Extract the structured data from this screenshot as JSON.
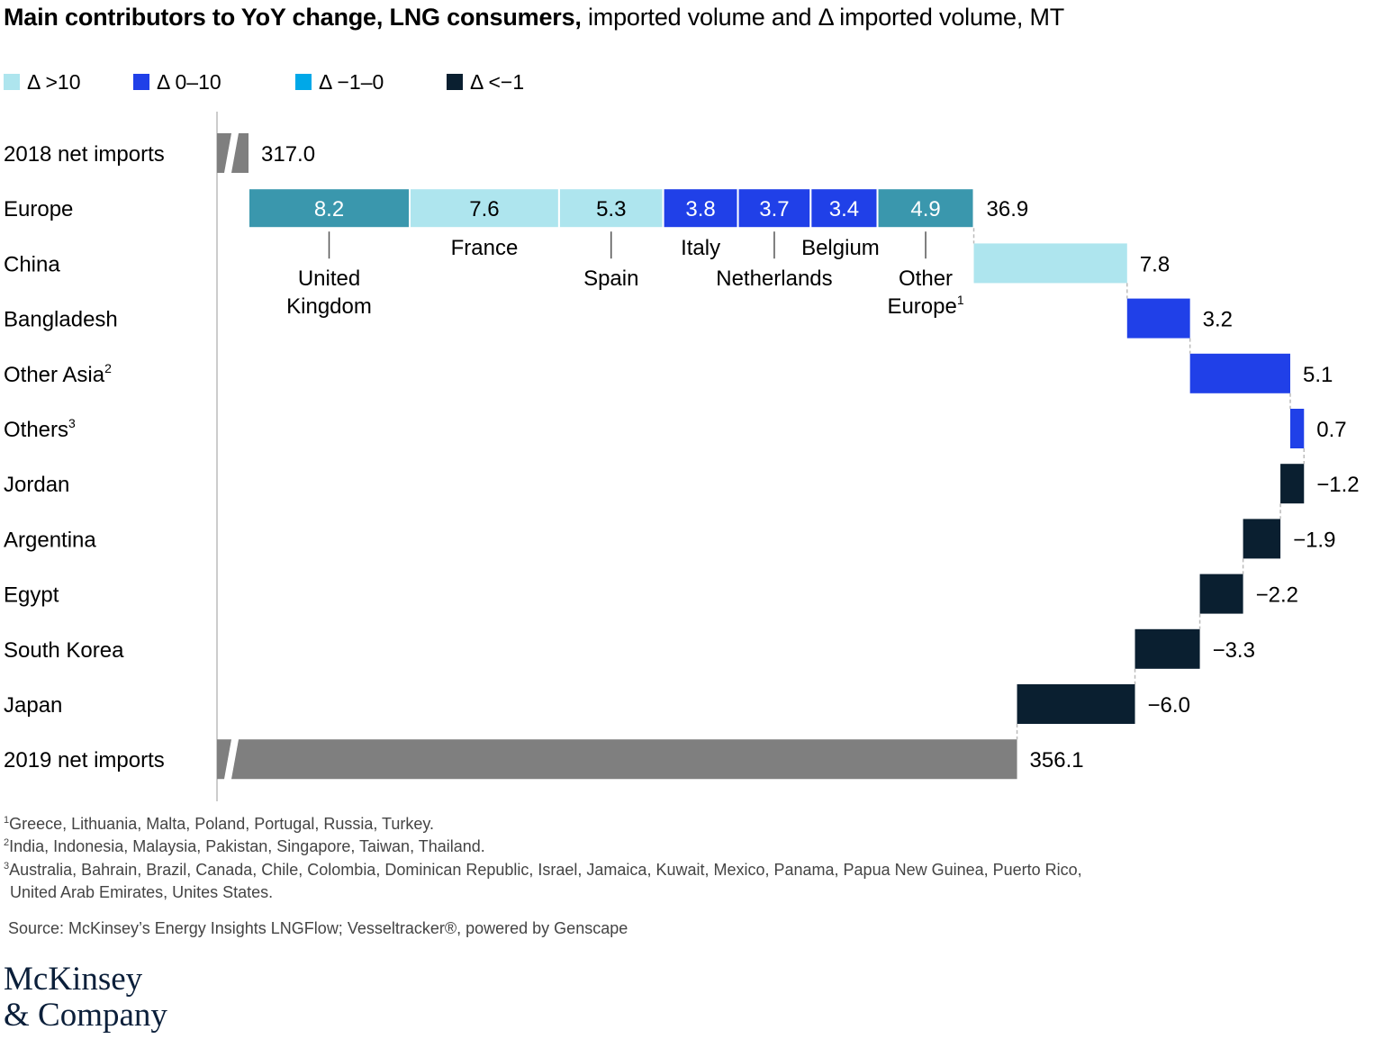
{
  "title": {
    "bold": "Main contributors to YoY change, LNG consumers,",
    "rest": " imported volume and Δ imported volume, MT"
  },
  "legend": [
    {
      "label": "Δ >10",
      "color": "#aee5ee"
    },
    {
      "label": "Δ 0–10",
      "color": "#2040e8"
    },
    {
      "label": "Δ −1–0",
      "color": "#00a8e8"
    },
    {
      "label": "Δ <−1",
      "color": "#0a1f30"
    }
  ],
  "colors": {
    "total": "#7f7f7f",
    "europe_group": "#3a97ad",
    "axis": "#cccccc"
  },
  "chart_data": {
    "type": "waterfall",
    "start": {
      "label": "2018 net imports",
      "value": 317.0,
      "value_label": "317.0"
    },
    "end": {
      "label": "2019 net imports",
      "value": 356.1,
      "value_label": "356.1"
    },
    "rows": [
      {
        "label": "Europe",
        "sup": "",
        "value": 36.9,
        "value_label": "36.9",
        "breakdown": true
      },
      {
        "label": "China",
        "sup": "",
        "value": 7.8,
        "value_label": "7.8",
        "category": "Δ >10"
      },
      {
        "label": "Bangladesh",
        "sup": "",
        "value": 3.2,
        "value_label": "3.2",
        "category": "Δ 0–10"
      },
      {
        "label": "Other Asia",
        "sup": "2",
        "value": 5.1,
        "value_label": "5.1",
        "category": "Δ 0–10"
      },
      {
        "label": "Others",
        "sup": "3",
        "value": 0.7,
        "value_label": "0.7",
        "category": "Δ 0–10"
      },
      {
        "label": "Jordan",
        "sup": "",
        "value": -1.2,
        "value_label": "−1.2",
        "category": "Δ <−1"
      },
      {
        "label": "Argentina",
        "sup": "",
        "value": -1.9,
        "value_label": "−1.9",
        "category": "Δ <−1"
      },
      {
        "label": "Egypt",
        "sup": "",
        "value": -2.2,
        "value_label": "−2.2",
        "category": "Δ <−1"
      },
      {
        "label": "South Korea",
        "sup": "",
        "value": -3.3,
        "value_label": "−3.3",
        "category": "Δ <−1"
      },
      {
        "label": "Japan",
        "sup": "",
        "value": -6.0,
        "value_label": "−6.0",
        "category": "Δ <−1"
      }
    ],
    "europe_breakdown": [
      {
        "name": "United Kingdom",
        "lines": [
          "United",
          "Kingdom"
        ],
        "sup": "",
        "value": 8.2,
        "value_label": "8.2",
        "category": "group"
      },
      {
        "name": "France",
        "lines": [
          "France"
        ],
        "sup": "",
        "value": 7.6,
        "value_label": "7.6",
        "category": "Δ >10"
      },
      {
        "name": "Spain",
        "lines": [
          "Spain"
        ],
        "sup": "",
        "value": 5.3,
        "value_label": "5.3",
        "category": "Δ >10"
      },
      {
        "name": "Italy",
        "lines": [
          "Italy"
        ],
        "sup": "",
        "value": 3.8,
        "value_label": "3.8",
        "category": "Δ 0–10"
      },
      {
        "name": "Netherlands",
        "lines": [
          "Netherlands"
        ],
        "sup": "",
        "value": 3.7,
        "value_label": "3.7",
        "category": "Δ 0–10"
      },
      {
        "name": "Belgium",
        "lines": [
          "Belgium"
        ],
        "sup": "",
        "value": 3.4,
        "value_label": "3.4",
        "category": "Δ 0–10"
      },
      {
        "name": "Other Europe",
        "lines": [
          "Other",
          "Europe"
        ],
        "sup": "1",
        "value": 4.9,
        "value_label": "4.9",
        "category": "group"
      }
    ]
  },
  "footnotes": [
    {
      "sup": "1",
      "text": "Greece, Lithuania, Malta, Poland, Portugal, Russia, Turkey."
    },
    {
      "sup": "2",
      "text": "India, Indonesia, Malaysia, Pakistan, Singapore, Taiwan, Thailand."
    },
    {
      "sup": "3",
      "text": "Australia, Bahrain, Brazil, Canada, Chile, Colombia, Dominican Republic, Israel, Jamaica, Kuwait, Mexico, Panama, Papua New Guinea, Puerto Rico,"
    },
    {
      "sup": "",
      "text": "United Arab Emirates, Unites States."
    }
  ],
  "source": "Source: McKinsey’s Energy Insights LNGFlow; Vesseltracker®, powered by Genscape",
  "logo": {
    "line1": "McKinsey",
    "line2": "& Company"
  }
}
